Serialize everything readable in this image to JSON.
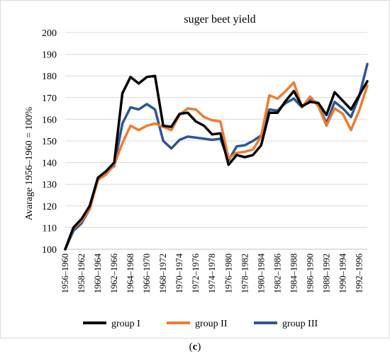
{
  "chart_data": {
    "type": "line",
    "title": "suger beet yield",
    "ylabel": "Avarage 1956–1960 = 100%",
    "xlabel": "",
    "ylim": [
      100,
      200
    ],
    "yticks": [
      "100",
      "110",
      "120",
      "130",
      "140",
      "150",
      "160",
      "170",
      "180",
      "190",
      "200"
    ],
    "categories": [
      "1956–1960",
      "1957–1961",
      "1958–1962",
      "1959–1963",
      "1960–1964",
      "1961–1965",
      "1962–1966",
      "1963–1967",
      "1964–1968",
      "1965–1969",
      "1966–1970",
      "1967–1971",
      "1968–1972",
      "1969–1973",
      "1970–1974",
      "1971–1975",
      "1972–1976",
      "1973–1977",
      "1974–1978",
      "1975–1979",
      "1976–1980",
      "1977–1981",
      "1978–1982",
      "1979–1983",
      "1980–1984",
      "1981–1985",
      "1982–1986",
      "1983–1987",
      "1984–1988",
      "1985–1989",
      "1986–1990",
      "1987–1991",
      "1988–1992",
      "1989–1993",
      "1990–1994",
      "1991–1995",
      "1992–1996",
      "1993–1997"
    ],
    "tick_labels": [
      "1956–1960",
      "1958–1962",
      "1960–1964",
      "1962–1966",
      "1964–1968",
      "1966–1970",
      "1968–1972",
      "1970–1974",
      "1972–1976",
      "1974–1978",
      "1976–1980",
      "1978–1982",
      "1980–1984",
      "1982–1986",
      "1984–1988",
      "1986–1990",
      "1988–1992",
      "1990–1994",
      "1992–1996"
    ],
    "grid": true,
    "legend": "bottom",
    "series": [
      {
        "name": "group I",
        "color": "#000000",
        "values": [
          100,
          110,
          114,
          120,
          133,
          136,
          140,
          172,
          179.5,
          176.5,
          179.5,
          180,
          157,
          156.5,
          162.5,
          163,
          159,
          157,
          153,
          153.5,
          139,
          143.5,
          142.5,
          143.5,
          148,
          163,
          163,
          168.5,
          173,
          166,
          168,
          167.5,
          162,
          172.5,
          168.5,
          164.5,
          171,
          177.5
        ]
      },
      {
        "name": "group II",
        "color": "#ed7d31",
        "values": [
          100,
          109.5,
          113,
          118.5,
          132,
          134.5,
          139,
          149,
          157,
          155,
          157,
          158,
          156.5,
          155,
          162,
          165,
          164.5,
          161,
          159.5,
          159,
          142,
          144.5,
          145,
          146,
          152,
          171,
          169.5,
          173,
          177,
          165.5,
          170.5,
          166,
          157,
          165,
          162.5,
          155,
          164,
          175.5
        ]
      },
      {
        "name": "group III",
        "color": "#2e5597",
        "values": [
          100,
          108.5,
          112,
          118.5,
          133,
          135.5,
          138.5,
          158,
          165.5,
          164.5,
          167,
          164.5,
          150,
          146.5,
          150.5,
          152,
          151.5,
          151,
          150.5,
          151,
          141,
          147.5,
          148,
          150,
          152.5,
          164.5,
          164,
          167.5,
          169.5,
          165.5,
          169.5,
          167,
          158,
          168,
          165,
          161,
          170.5,
          185.5
        ]
      }
    ]
  },
  "caption": {
    "prefix": "(",
    "letter": "c",
    "suffix": ")"
  }
}
